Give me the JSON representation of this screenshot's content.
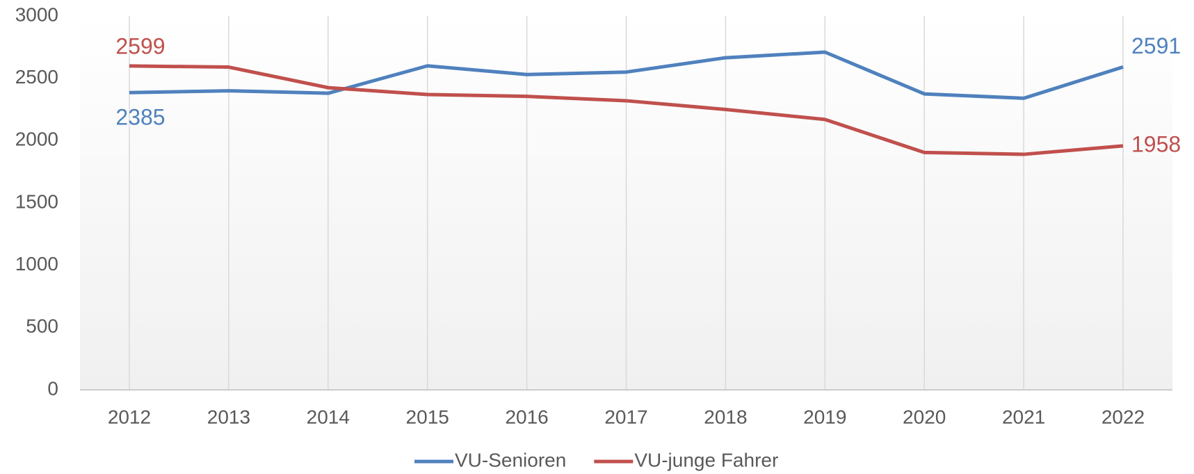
{
  "chart_data": {
    "type": "line",
    "categories": [
      "2012",
      "2013",
      "2014",
      "2015",
      "2016",
      "2017",
      "2018",
      "2019",
      "2020",
      "2021",
      "2022"
    ],
    "series": [
      {
        "name": "VU-Senioren",
        "color": "#4f81bd",
        "values": [
          2385,
          2400,
          2380,
          2600,
          2530,
          2550,
          2665,
          2710,
          2375,
          2340,
          2591
        ]
      },
      {
        "name": "VU-junge Fahrer",
        "color": "#c0504d",
        "values": [
          2599,
          2590,
          2425,
          2370,
          2355,
          2320,
          2250,
          2170,
          1905,
          1890,
          1958
        ]
      }
    ],
    "ylim": [
      0,
      3000
    ],
    "yticks": [
      0,
      500,
      1000,
      1500,
      2000,
      2500,
      3000
    ],
    "grid": true,
    "legend": "bottom"
  }
}
